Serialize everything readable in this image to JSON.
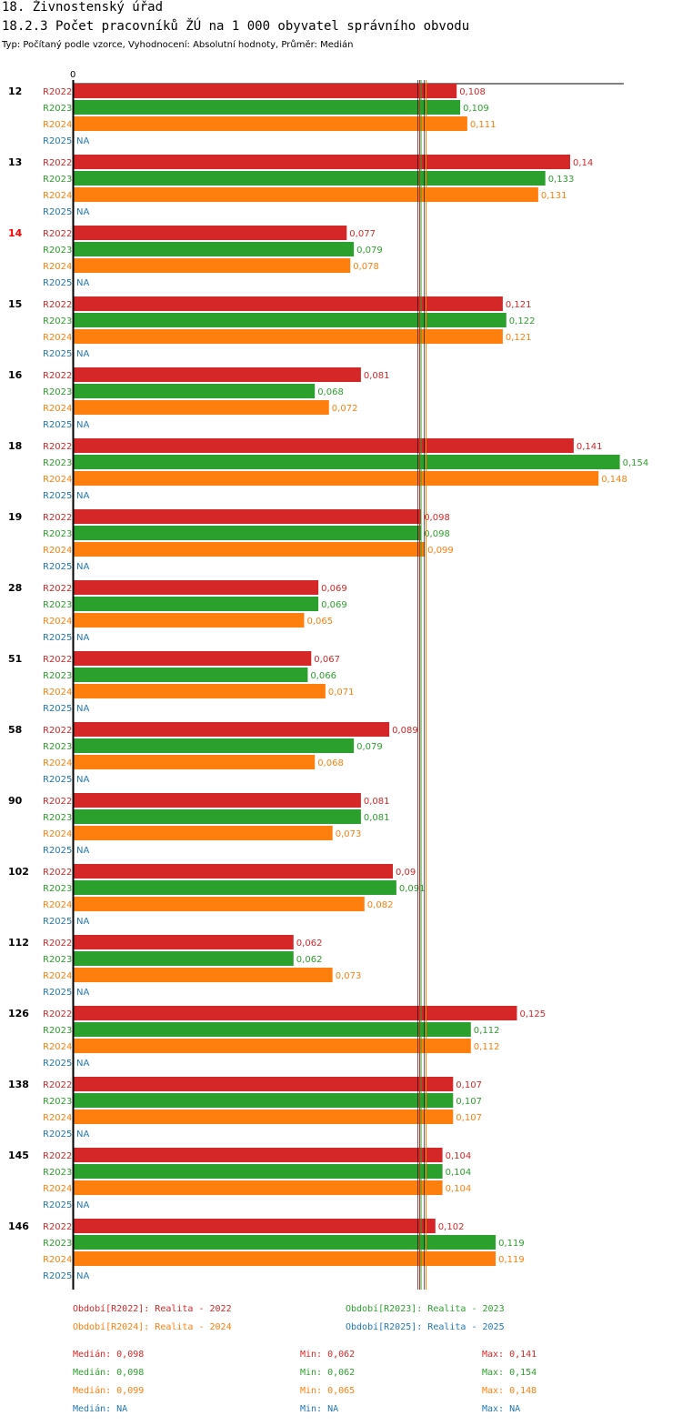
{
  "header": {
    "title": "18. Živnostenský úřad",
    "subtitle": "18.2.3 Počet pracovníků ŽÚ na 1 000 obyvatel správního obvodu",
    "meta": "Typ: Počítaný podle vzorce, Vyhodnocení: Absolutní hodnoty, Průměr: Medián"
  },
  "colors": {
    "R2022": "#d62728",
    "R2023": "#2ca02c",
    "R2024": "#ff7f0e",
    "R2025": "#1f77b4",
    "highlight_group": "#ff0000"
  },
  "chart_data": {
    "type": "bar",
    "orientation": "horizontal",
    "title": "18.2.3 Počet pracovníků ŽÚ na 1 000 obyvatel správního obvodu",
    "axis_zero_label": "0",
    "xlim": [
      0,
      0.155
    ],
    "median_lines": [
      0.098,
      0.098,
      0.099
    ],
    "series_names": [
      "R2022",
      "R2023",
      "R2024",
      "R2025"
    ],
    "highlight_category": "14",
    "categories": [
      "12",
      "13",
      "14",
      "15",
      "16",
      "18",
      "19",
      "28",
      "51",
      "58",
      "90",
      "102",
      "112",
      "126",
      "138",
      "145",
      "146"
    ],
    "series": [
      {
        "name": "R2022",
        "values": [
          0.108,
          0.14,
          0.077,
          0.121,
          0.081,
          0.141,
          0.098,
          0.069,
          0.067,
          0.089,
          0.081,
          0.09,
          0.062,
          0.125,
          0.107,
          0.104,
          0.102
        ],
        "labels": [
          "0,108",
          "0,14",
          "0,077",
          "0,121",
          "0,081",
          "0,141",
          "0,098",
          "0,069",
          "0,067",
          "0,089",
          "0,081",
          "0,09",
          "0,062",
          "0,125",
          "0,107",
          "0,104",
          "0,102"
        ]
      },
      {
        "name": "R2023",
        "values": [
          0.109,
          0.133,
          0.079,
          0.122,
          0.068,
          0.154,
          0.098,
          0.069,
          0.066,
          0.079,
          0.081,
          0.091,
          0.062,
          0.112,
          0.107,
          0.104,
          0.119
        ],
        "labels": [
          "0,109",
          "0,133",
          "0,079",
          "0,122",
          "0,068",
          "0,154",
          "0,098",
          "0,069",
          "0,066",
          "0,079",
          "0,081",
          "0,091",
          "0,062",
          "0,112",
          "0,107",
          "0,104",
          "0,119"
        ]
      },
      {
        "name": "R2024",
        "values": [
          0.111,
          0.131,
          0.078,
          0.121,
          0.072,
          0.148,
          0.099,
          0.065,
          0.071,
          0.068,
          0.073,
          0.082,
          0.073,
          0.112,
          0.107,
          0.104,
          0.119
        ],
        "labels": [
          "0,111",
          "0,131",
          "0,078",
          "0,121",
          "0,072",
          "0,148",
          "0,099",
          "0,065",
          "0,071",
          "0,068",
          "0,073",
          "0,082",
          "0,073",
          "0,112",
          "0,107",
          "0,104",
          "0,119"
        ]
      },
      {
        "name": "R2025",
        "values": [
          null,
          null,
          null,
          null,
          null,
          null,
          null,
          null,
          null,
          null,
          null,
          null,
          null,
          null,
          null,
          null,
          null
        ],
        "labels": [
          "NA",
          "NA",
          "NA",
          "NA",
          "NA",
          "NA",
          "NA",
          "NA",
          "NA",
          "NA",
          "NA",
          "NA",
          "NA",
          "NA",
          "NA",
          "NA",
          "NA"
        ]
      }
    ]
  },
  "legend": {
    "r2022": "Období[R2022]: Realita - 2022",
    "r2023": "Období[R2023]: Realita - 2023",
    "r2024": "Období[R2024]: Realita - 2024",
    "r2025": "Období[R2025]: Realita - 2025"
  },
  "stats": {
    "r2022": {
      "median": "Medián: 0,098",
      "min": "Min: 0,062",
      "max": "Max: 0,141"
    },
    "r2023": {
      "median": "Medián: 0,098",
      "min": "Min: 0,062",
      "max": "Max: 0,154"
    },
    "r2024": {
      "median": "Medián: 0,099",
      "min": "Min: 0,065",
      "max": "Max: 0,148"
    },
    "r2025": {
      "median": "Medián: NA",
      "min": "Min: NA",
      "max": "Max: NA"
    }
  }
}
